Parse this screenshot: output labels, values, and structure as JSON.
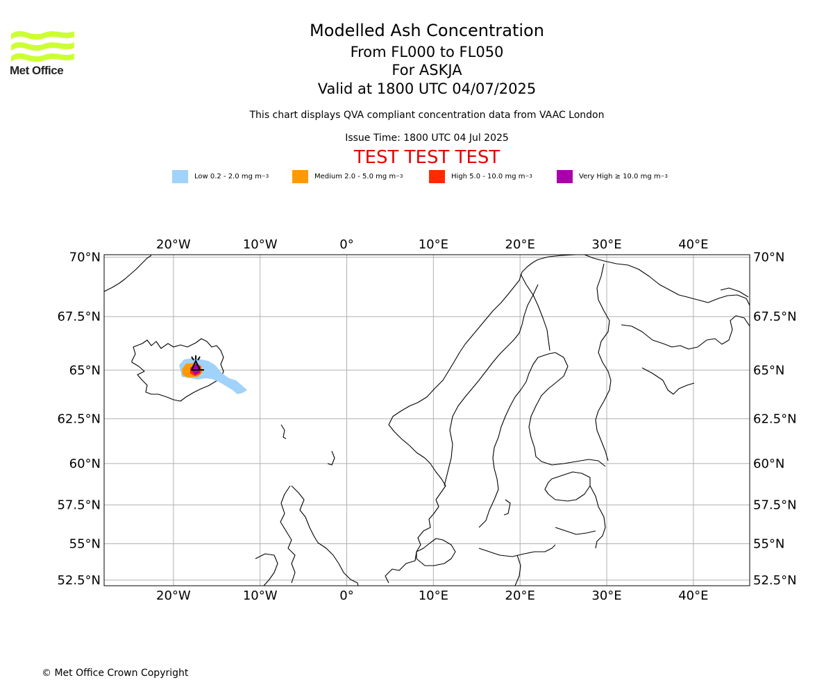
{
  "header": {
    "title": "Modelled Ash Concentration",
    "levels": "From FL000 to FL050",
    "volcano": "For ASKJA",
    "valid": "Valid at 1800 UTC 04/07/2025",
    "subtitle": "This chart displays QVA compliant concentration data from VAAC London",
    "issue_time": "Issue Time: 1800 UTC 04 Jul 2025",
    "test_banner": "TEST TEST TEST"
  },
  "logo": {
    "text": "Met Office",
    "color": "#ccff33"
  },
  "legend": [
    {
      "label": "Low 0.2 - 2.0 mg m",
      "unit_sup": "−3",
      "color": "#a0d2fa"
    },
    {
      "label": "Medium 2.0 - 5.0 mg m",
      "unit_sup": "−3",
      "color": "#ff9900"
    },
    {
      "label": "High 5.0 - 10.0 mg m",
      "unit_sup": "−3",
      "color": "#ff2a00"
    },
    {
      "label": "Very High  ≥  10.0 mg m",
      "unit_sup": "−3",
      "color": "#aa00aa"
    }
  ],
  "map": {
    "lon_range": [
      -28,
      46.5
    ],
    "lat_range": [
      52.1,
      70.1
    ],
    "lon_ticks": [
      {
        "value": -20,
        "label": "20°W"
      },
      {
        "value": -10,
        "label": "10°W"
      },
      {
        "value": 0,
        "label": "0°"
      },
      {
        "value": 10,
        "label": "10°E"
      },
      {
        "value": 20,
        "label": "20°E"
      },
      {
        "value": 30,
        "label": "30°E"
      },
      {
        "value": 40,
        "label": "40°E"
      }
    ],
    "lat_ticks": [
      {
        "value": 70,
        "label": "70°N"
      },
      {
        "value": 67.5,
        "label": "67.5°N"
      },
      {
        "value": 65,
        "label": "65°N"
      },
      {
        "value": 62.5,
        "label": "62.5°N"
      },
      {
        "value": 60,
        "label": "60°N"
      },
      {
        "value": 57.5,
        "label": "57.5°N"
      },
      {
        "value": 55,
        "label": "55°N"
      },
      {
        "value": 52.5,
        "label": "52.5°N"
      }
    ],
    "volcano_location": {
      "name": "ASKJA",
      "lon": -16.75,
      "lat": 65.03
    },
    "grid": true
  },
  "footer": {
    "copyright": "© Met Office Crown Copyright"
  }
}
